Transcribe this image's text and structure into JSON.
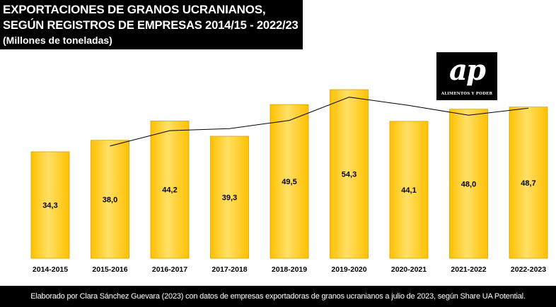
{
  "header": {
    "title_line1": "EXPORTACIONES DE GRANOS UCRANIANOS,",
    "title_line2": "SEGÚN REGISTROS DE EMPRESAS 2014/15 - 2022/23",
    "subtitle": "(Millones de toneladas)"
  },
  "logo": {
    "mark": "ap",
    "tagline": "ALIMENTOS Y PODER"
  },
  "footer": {
    "source": "Elaborado por Clara Sánchez Guevara (2023) con datos de empresas exportadoras de granos ucranianos a julio de 2023, según Share UA Potential."
  },
  "colors": {
    "bar_fill": "#FFC000",
    "bar_highlight": "#FFE066",
    "bar_border": "#D9A300",
    "line": "#000000",
    "header_background": "#000000"
  },
  "chart_data": {
    "type": "bar",
    "categories": [
      "2014-2015",
      "2015-2016",
      "2016-2017",
      "2017-2018",
      "2018-2019",
      "2019-2020",
      "2020-2021",
      "2021-2022",
      "2022-2023"
    ],
    "values": [
      34.3,
      38.0,
      44.2,
      39.3,
      49.5,
      54.3,
      44.1,
      48.0,
      48.7
    ],
    "value_labels": [
      "34,3",
      "38,0",
      "44,2",
      "39,3",
      "49,5",
      "54,3",
      "44,1",
      "48,0",
      "48,7"
    ],
    "trendline": {
      "type": "moving_average",
      "period": 2,
      "starts_at_category": "2015-2016",
      "values": [
        36.15,
        41.1,
        41.75,
        44.4,
        51.9,
        49.2,
        46.05,
        48.35
      ]
    },
    "ylim": [
      0,
      56
    ],
    "xlabel": "",
    "ylabel": "",
    "grid": false,
    "legend": "none"
  }
}
